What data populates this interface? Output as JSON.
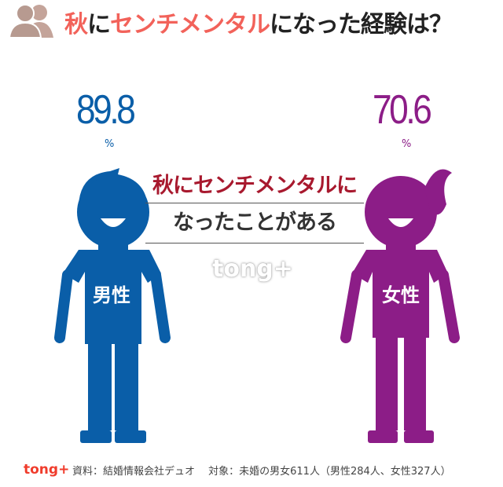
{
  "header": {
    "icon": "people-icon",
    "title_parts": [
      {
        "text": "秋",
        "highlight": true
      },
      {
        "text": "に",
        "highlight": false
      },
      {
        "text": "センチメンタル",
        "highlight": true
      },
      {
        "text": "になった経験は？",
        "highlight": false
      }
    ]
  },
  "male": {
    "value": "89.8",
    "unit": "%",
    "label": "男性",
    "color": "#0a5ea8"
  },
  "female": {
    "value": "70.6",
    "unit": "%",
    "label": "女性",
    "color": "#8c1d87"
  },
  "center": {
    "line1": "秋にセンチメンタルに",
    "line2": "なったことがある"
  },
  "watermark": "tong+",
  "footer": {
    "logo": "tong+",
    "source": "資料：結婚情報会社デュオ　 対象：未婚の男女611人（男性284人、女性327人）"
  },
  "colors": {
    "accent": "#f2625a",
    "male": "#0a5ea8",
    "female": "#8c1d87"
  }
}
